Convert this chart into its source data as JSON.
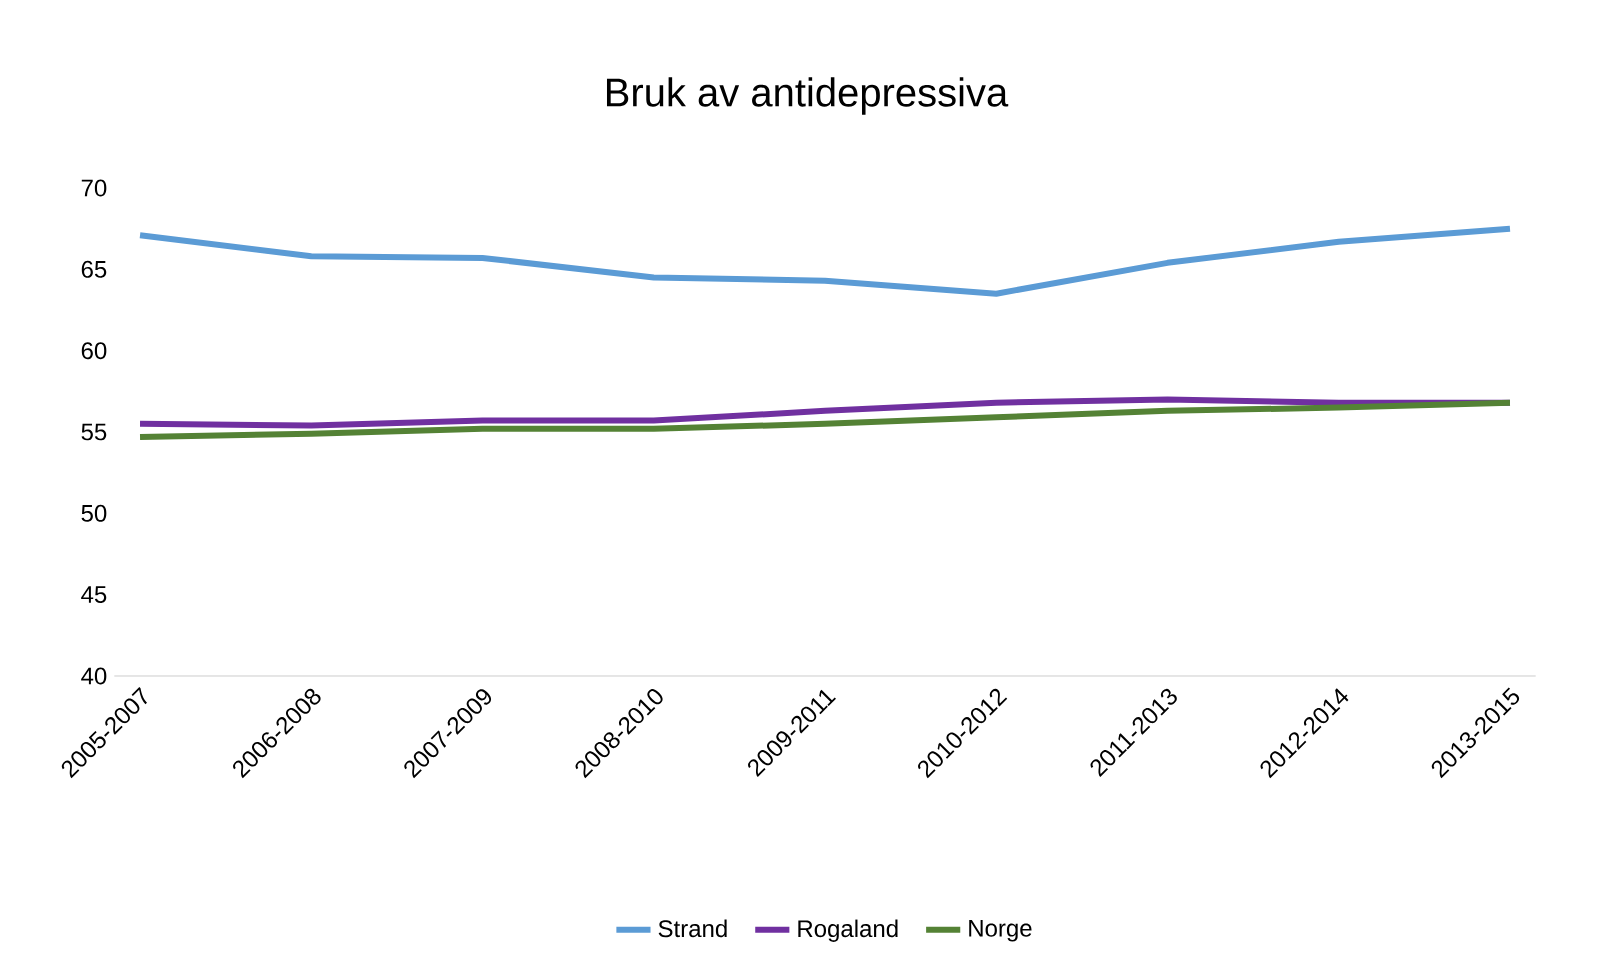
{
  "chart_data": {
    "type": "line",
    "title": "Bruk av antidepressiva",
    "categories": [
      "2005-2007",
      "2006-2008",
      "2007-2009",
      "2008-2010",
      "2009-2011",
      "2010-2012",
      "2011-2013",
      "2012-2014",
      "2013-2015"
    ],
    "series": [
      {
        "name": "Strand",
        "color": "#5b9bd5",
        "values": [
          67.1,
          65.8,
          65.7,
          64.5,
          64.3,
          63.5,
          65.4,
          66.7,
          67.5
        ]
      },
      {
        "name": "Rogaland",
        "color": "#7030a0",
        "values": [
          55.5,
          55.4,
          55.7,
          55.7,
          56.3,
          56.8,
          57.0,
          56.8,
          56.8
        ]
      },
      {
        "name": "Norge",
        "color": "#548235",
        "values": [
          54.7,
          54.9,
          55.2,
          55.2,
          55.5,
          55.9,
          56.3,
          56.5,
          56.8
        ]
      }
    ],
    "ylim": [
      40,
      70
    ],
    "yticks": [
      40,
      45,
      50,
      55,
      60,
      65,
      70
    ],
    "legend": "bottom",
    "grid": false,
    "marker": "none",
    "line_style": "solid"
  }
}
